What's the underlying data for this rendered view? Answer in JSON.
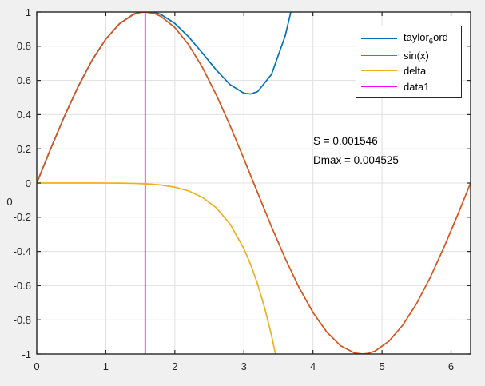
{
  "figure": {
    "background": "#f0f0f0",
    "plot_background": "#ffffff",
    "axis_color": "#262626",
    "grid_color": "#e0e0e0",
    "text_color": "#262626"
  },
  "chart_data": {
    "type": "line",
    "title": "",
    "xlabel": "",
    "ylabel": "0",
    "xlim": [
      0,
      6.2832
    ],
    "ylim": [
      -1,
      1
    ],
    "grid": true,
    "x_ticks": {
      "values": [
        0,
        1,
        2,
        3,
        4,
        5,
        6
      ],
      "labels": [
        "0",
        "1",
        "2",
        "3",
        "4",
        "5",
        "6"
      ]
    },
    "y_ticks": {
      "values": [
        1,
        0.8,
        0.6,
        0.4,
        0.2,
        0,
        -0.2,
        -0.4,
        -0.6,
        -0.8,
        -1
      ],
      "labels": [
        "1",
        "0.8",
        "0.6",
        "0.4",
        "0.2",
        "0",
        "-0.2",
        "-0.4",
        "-0.6",
        "-0.8",
        "-1"
      ]
    },
    "series": [
      {
        "name": "data1",
        "color": "#ff00ff",
        "x": [
          1.5708,
          1.5708
        ],
        "y": [
          -1,
          1
        ]
      },
      {
        "name": "taylor_6_ord",
        "color": "#0072bd",
        "x": [
          0,
          0.2,
          0.4,
          0.6,
          0.8,
          1.0,
          1.2,
          1.4,
          1.5,
          1.6,
          1.7,
          1.8,
          2.0,
          2.2,
          2.4,
          2.6,
          2.8,
          3.0,
          3.1,
          3.2,
          3.4,
          3.6,
          3.7
        ],
        "y": [
          0,
          0.1987,
          0.3894,
          0.5646,
          0.7174,
          0.8417,
          0.9327,
          0.9875,
          1.0008,
          1.0047,
          0.9995,
          0.9855,
          0.9333,
          0.8548,
          0.7596,
          0.6608,
          0.5755,
          0.525,
          0.5206,
          0.5349,
          0.6356,
          0.8629,
          1.0365
        ]
      },
      {
        "name": "sin(x)",
        "color": "#d95319",
        "x": [
          0,
          0.2,
          0.4,
          0.6,
          0.8,
          1.0,
          1.2,
          1.4,
          1.5,
          1.5708,
          1.7,
          1.8,
          2.0,
          2.2,
          2.4,
          2.6,
          2.8,
          3.0,
          3.2,
          3.4,
          3.6,
          3.8,
          4.0,
          4.2,
          4.4,
          4.6,
          4.7124,
          4.8,
          4.9,
          5.1,
          5.3,
          5.5,
          5.7,
          5.9,
          6.1,
          6.2832
        ],
        "y": [
          0,
          0.1987,
          0.3894,
          0.5646,
          0.7174,
          0.8415,
          0.932,
          0.9854,
          0.9975,
          1.0,
          0.9917,
          0.9738,
          0.9093,
          0.8085,
          0.6755,
          0.5155,
          0.335,
          0.1411,
          -0.0584,
          -0.2555,
          -0.4425,
          -0.6119,
          -0.7568,
          -0.8716,
          -0.9516,
          -0.9937,
          -1.0,
          -0.9962,
          -0.9825,
          -0.9249,
          -0.8313,
          -0.7055,
          -0.5507,
          -0.3739,
          -0.1822,
          0
        ]
      },
      {
        "name": "delta",
        "color": "#edb120",
        "x": [
          0,
          0.4,
          0.8,
          1.0,
          1.2,
          1.4,
          1.6,
          1.8,
          2.0,
          2.2,
          2.4,
          2.6,
          2.8,
          3.0,
          3.1,
          3.2,
          3.3,
          3.4,
          3.5
        ],
        "y": [
          0,
          0,
          -0.0001,
          -0.0002,
          -0.0007,
          -0.002,
          -0.0051,
          -0.0116,
          -0.024,
          -0.0463,
          -0.0841,
          -0.1453,
          -0.2405,
          -0.3839,
          -0.479,
          -0.5932,
          -0.7295,
          -0.8912,
          -1.0818
        ]
      }
    ],
    "legend": {
      "position": "top-right",
      "entries": [
        {
          "pre": "taylor",
          "sub": "6",
          "post": "ord",
          "color": "#0072bd"
        },
        {
          "pre": "sin(x)",
          "sub": "",
          "post": "",
          "color": "#d95319"
        },
        {
          "pre": "delta",
          "sub": "",
          "post": "",
          "color": "#edb120"
        },
        {
          "pre": "data1",
          "sub": "",
          "post": "",
          "color": "#ff00ff"
        }
      ]
    },
    "annotations": [
      {
        "text": "S = 0.001546"
      },
      {
        "text": "Dmax = 0.004525"
      }
    ]
  }
}
